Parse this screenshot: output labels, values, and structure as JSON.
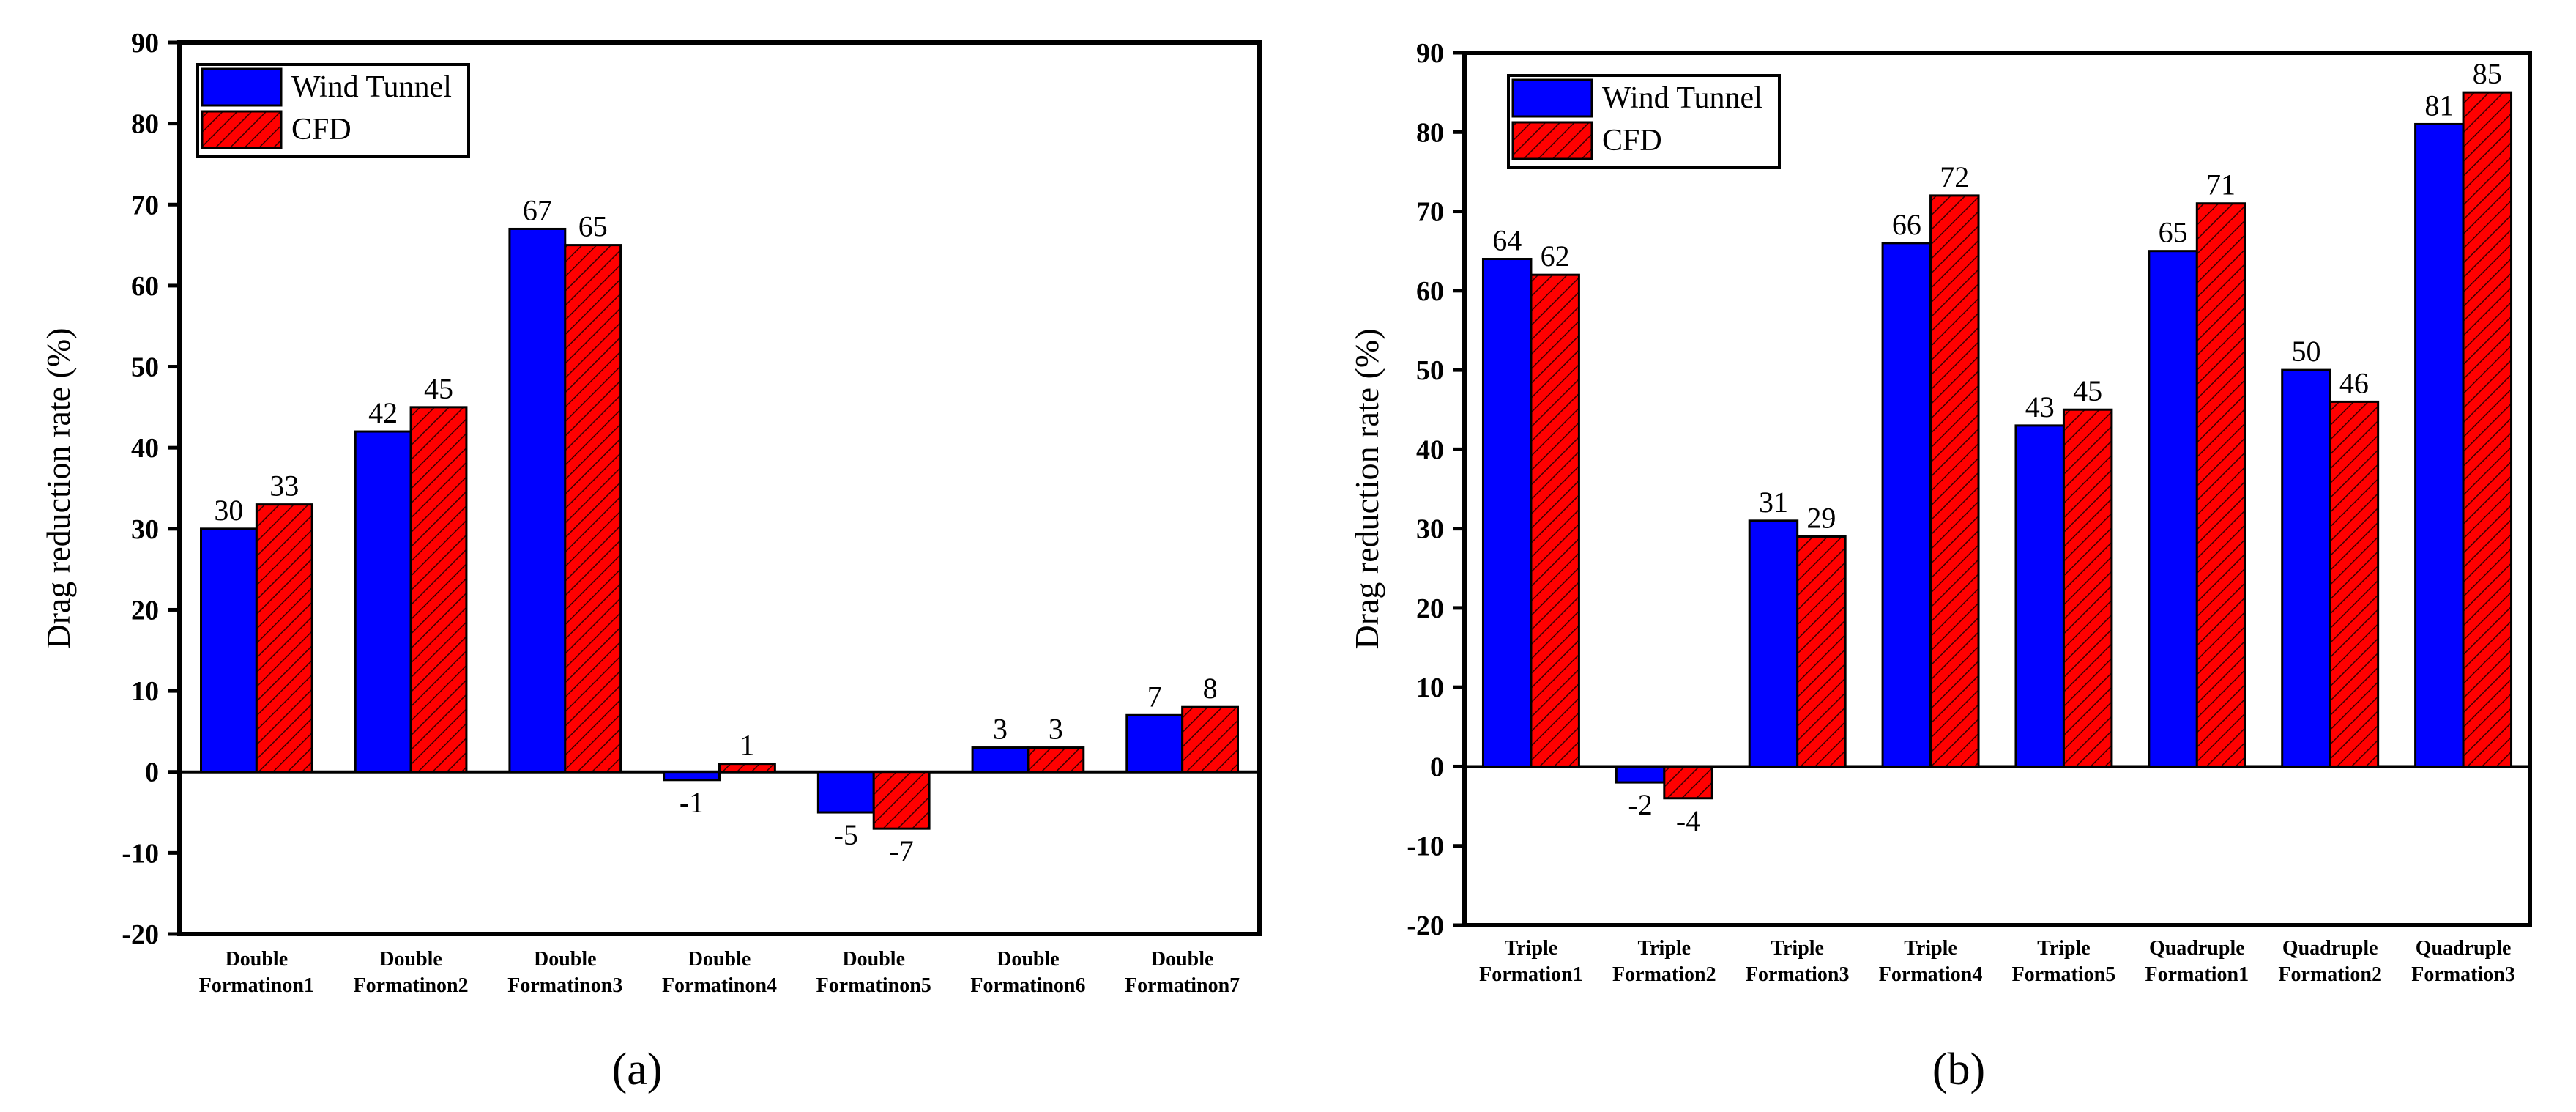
{
  "colors": {
    "wind_tunnel": "#0000ff",
    "cfd": "#ff0000",
    "hatch": "#3a0000"
  },
  "chart_data": [
    {
      "type": "bar",
      "panel_label": "(a)",
      "ylabel": "Drag  reduction  rate (%)",
      "ylim": [
        -20,
        90
      ],
      "yticks": [
        -20,
        -10,
        0,
        10,
        20,
        30,
        40,
        50,
        60,
        70,
        80,
        90
      ],
      "categories": [
        [
          "Double",
          "Formatinon1"
        ],
        [
          "Double",
          "Formatinon2"
        ],
        [
          "Double",
          "Formatinon3"
        ],
        [
          "Double",
          "Formatinon4"
        ],
        [
          "Double",
          "Formatinon5"
        ],
        [
          "Double",
          "Formatinon6"
        ],
        [
          "Double",
          "Formatinon7"
        ]
      ],
      "series": [
        {
          "name": "Wind Tunnel",
          "values": [
            30,
            42,
            67,
            -1,
            -5,
            3,
            7
          ]
        },
        {
          "name": "CFD",
          "values": [
            33,
            45,
            65,
            1,
            -7,
            3,
            8
          ]
        }
      ],
      "legend": "top-left"
    },
    {
      "type": "bar",
      "panel_label": "(b)",
      "ylabel": "Drag  reduction  rate (%)",
      "ylim": [
        -20,
        90
      ],
      "yticks": [
        -20,
        -10,
        0,
        10,
        20,
        30,
        40,
        50,
        60,
        70,
        80,
        90
      ],
      "categories": [
        [
          "Triple",
          "Formation1"
        ],
        [
          "Triple",
          "Formation2"
        ],
        [
          "Triple",
          "Formation3"
        ],
        [
          "Triple",
          "Formation4"
        ],
        [
          "Triple",
          "Formation5"
        ],
        [
          "Quadruple",
          "Formation1"
        ],
        [
          "Quadruple",
          "Formation2"
        ],
        [
          "Quadruple",
          "Formation3"
        ]
      ],
      "series": [
        {
          "name": "Wind Tunnel",
          "values": [
            64,
            -2,
            31,
            66,
            43,
            65,
            50,
            81
          ]
        },
        {
          "name": "CFD",
          "values": [
            62,
            -4,
            29,
            72,
            45,
            71,
            46,
            85
          ]
        }
      ],
      "legend": "top-left"
    }
  ]
}
